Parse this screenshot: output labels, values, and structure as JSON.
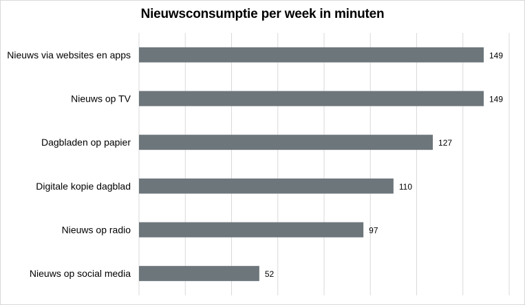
{
  "chart_data": {
    "type": "bar",
    "orientation": "horizontal",
    "title": "Nieuwsconsumptie per week in minuten",
    "xlabel": "",
    "ylabel": "",
    "categories": [
      "Nieuws via websites en apps",
      "Nieuws op TV",
      "Dagbladen op papier",
      "Digitale kopie dagblad",
      "Nieuws op radio",
      "Nieuws op social media"
    ],
    "values": [
      149,
      149,
      127,
      110,
      97,
      52
    ],
    "xlim": [
      0,
      160
    ],
    "grid": "vertical",
    "legend": "none",
    "bar_color": "#6d767b",
    "grid_color": "#d9d9d9"
  }
}
